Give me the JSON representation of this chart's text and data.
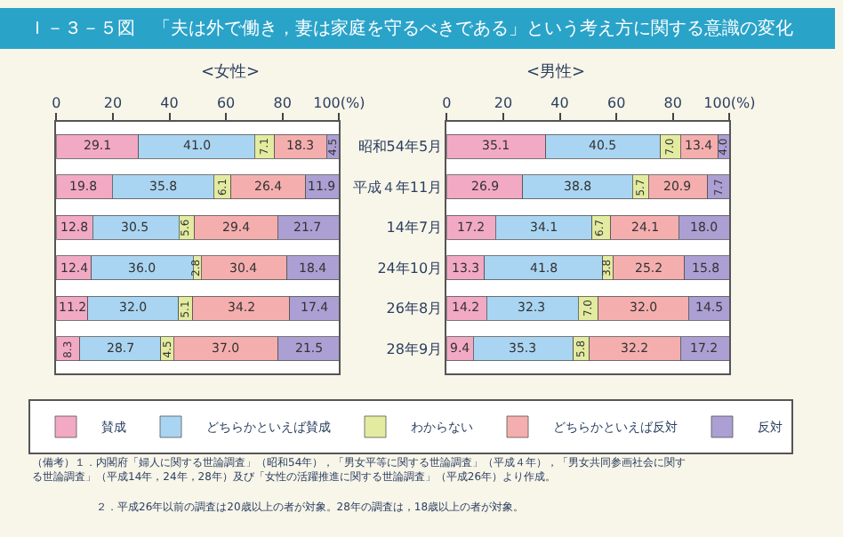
{
  "chart_data": [
    {
      "type": "bar",
      "orientation": "horizontal",
      "stacked": true,
      "title": "<女性>",
      "categories": [
        "昭和54年5月",
        "平成４年11月",
        "14年7月",
        "24年10月",
        "26年8月",
        "28年9月"
      ],
      "series": [
        {
          "name": "賛成",
          "color": "#f2a9c4",
          "values": [
            29.1,
            19.8,
            12.8,
            12.4,
            11.2,
            8.3
          ],
          "value_labels": [
            "29.1",
            "19.8",
            "12.8",
            "12.4",
            "11.2",
            "8.3"
          ]
        },
        {
          "name": "どちらかといえば賛成",
          "color": "#a9d5f2",
          "values": [
            41.0,
            35.8,
            30.5,
            36.0,
            32.0,
            28.7
          ],
          "value_labels": [
            "41.0",
            "35.8",
            "30.5",
            "36.0",
            "32.0",
            "28.7"
          ]
        },
        {
          "name": "わからない",
          "color": "#e3eba0",
          "values": [
            7.1,
            6.1,
            5.6,
            2.8,
            5.1,
            4.5
          ],
          "value_labels": [
            "7.1",
            "6.1",
            "5.6",
            "2.8",
            "5.1",
            "4.5"
          ]
        },
        {
          "name": "どちらかといえば反対",
          "color": "#f5aeae",
          "values": [
            18.3,
            26.4,
            29.4,
            30.4,
            34.2,
            37.0
          ],
          "value_labels": [
            "18.3",
            "26.4",
            "29.4",
            "30.4",
            "34.2",
            "37.0"
          ]
        },
        {
          "name": "反対",
          "color": "#ab9fd3",
          "values": [
            4.5,
            11.9,
            21.7,
            18.4,
            17.4,
            21.5
          ],
          "value_labels": [
            "4.5",
            "11.9",
            "21.7",
            "18.4",
            "17.4",
            "21.5"
          ]
        }
      ],
      "xlim": [
        0,
        100
      ],
      "xticks": [
        0,
        20,
        40,
        60,
        80,
        {
          "value": 100,
          "label": "100(%)"
        }
      ],
      "grid": false,
      "legend": "bottom",
      "tick_labels": "x",
      "annotations": [
        "Ｉ－３－５図　「夫は外で働き，妻は家庭を守るべきである」という考え方に関する意識の変化",
        "（備考）１．内閣府「婦人に関する世論調査」（昭和54年），「男女平等に関する世論調査」（平成４年），「男女共同参画社会に関する世論調査」（平成14年，24年，28年）及び「女性の活躍推進に関する世論調査」（平成26年）より作成。",
        "２．平成26年以前の調査は20歳以上の者が対象。28年の調査は，18歳以上の者が対象。"
      ]
    },
    {
      "type": "bar",
      "orientation": "horizontal",
      "stacked": true,
      "title": "<男性>",
      "categories": [
        "昭和54年5月",
        "平成４年11月",
        "14年7月",
        "24年10月",
        "26年8月",
        "28年9月"
      ],
      "series": [
        {
          "color": "#f2a9c4",
          "values": [
            35.1,
            26.9,
            17.2,
            13.3,
            14.2,
            9.4
          ],
          "value_labels": [
            "35.1",
            "26.9",
            "17.2",
            "13.3",
            "14.2",
            "9.4"
          ]
        },
        {
          "color": "#a9d5f2",
          "values": [
            40.5,
            38.8,
            34.1,
            41.8,
            32.3,
            35.3
          ],
          "value_labels": [
            "40.5",
            "38.8",
            "34.1",
            "41.8",
            "32.3",
            "35.3"
          ]
        },
        {
          "color": "#e3eba0",
          "values": [
            7.0,
            5.7,
            6.7,
            3.8,
            7.0,
            5.8
          ],
          "value_labels": [
            "7.0",
            "5.7",
            "6.7",
            "3.8",
            "7.0",
            "5.8"
          ]
        },
        {
          "color": "#f5aeae",
          "values": [
            13.4,
            20.9,
            24.1,
            25.2,
            32.0,
            32.2
          ],
          "value_labels": [
            "13.4",
            "20.9",
            "24.1",
            "25.2",
            "32.0",
            "32.2"
          ]
        },
        {
          "color": "#ab9fd3",
          "values": [
            4.0,
            7.7,
            18.0,
            15.8,
            14.5,
            17.2
          ],
          "value_labels": [
            "4.0",
            "7.7",
            "18.0",
            "15.8",
            "14.5",
            "17.2"
          ]
        }
      ],
      "xlim": [
        0,
        100
      ],
      "xticks": [
        0,
        20,
        40,
        60,
        80,
        {
          "value": 100,
          "label": "100(%)"
        }
      ],
      "grid": false,
      "legend": false
    }
  ]
}
